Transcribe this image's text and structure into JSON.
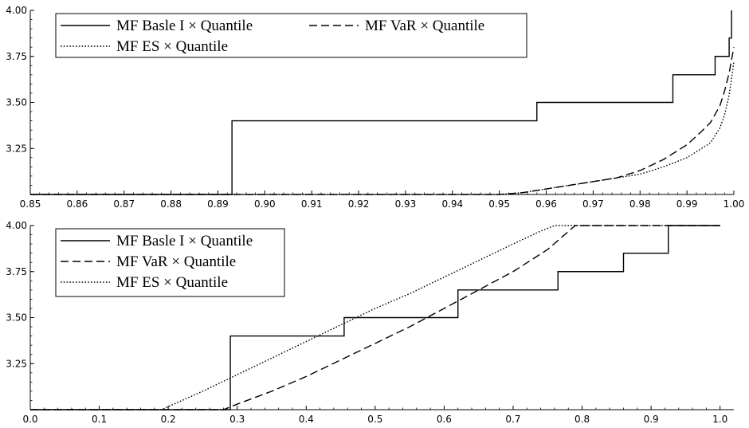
{
  "chart_data": [
    {
      "type": "line",
      "title": "",
      "xlabel": "",
      "ylabel": "",
      "xlim": [
        0.85,
        1.0
      ],
      "ylim": [
        3.0,
        4.0
      ],
      "xticks": [
        "0.85",
        "0.86",
        "0.87",
        "0.88",
        "0.89",
        "0.90",
        "0.91",
        "0.92",
        "0.93",
        "0.94",
        "0.95",
        "0.96",
        "0.97",
        "0.98",
        "0.99",
        "1.00"
      ],
      "yticks": [
        "3.25",
        "3.50",
        "3.75",
        "4.00"
      ],
      "grid": false,
      "legend_position": "top-left",
      "series": [
        {
          "name": "MF Basle I × Quantile",
          "style": "solid",
          "step": true,
          "points": [
            [
              0.85,
              3.0
            ],
            [
              0.893,
              3.0
            ],
            [
              0.893,
              3.4
            ],
            [
              0.958,
              3.4
            ],
            [
              0.958,
              3.5
            ],
            [
              0.987,
              3.5
            ],
            [
              0.987,
              3.65
            ],
            [
              0.996,
              3.65
            ],
            [
              0.996,
              3.75
            ],
            [
              0.999,
              3.75
            ],
            [
              0.999,
              3.85
            ],
            [
              0.9995,
              3.85
            ],
            [
              0.9995,
              4.0
            ]
          ]
        },
        {
          "name": "MF VaR × Quantile",
          "style": "dashed",
          "step": false,
          "points": [
            [
              0.85,
              3.0
            ],
            [
              0.95,
              3.0
            ],
            [
              0.955,
              3.01
            ],
            [
              0.96,
              3.03
            ],
            [
              0.965,
              3.05
            ],
            [
              0.97,
              3.07
            ],
            [
              0.975,
              3.09
            ],
            [
              0.98,
              3.13
            ],
            [
              0.985,
              3.19
            ],
            [
              0.99,
              3.27
            ],
            [
              0.993,
              3.34
            ],
            [
              0.995,
              3.39
            ],
            [
              0.997,
              3.48
            ],
            [
              0.998,
              3.56
            ],
            [
              0.999,
              3.66
            ],
            [
              1.0,
              3.8
            ]
          ]
        },
        {
          "name": "MF ES × Quantile",
          "style": "dotted",
          "step": false,
          "points": [
            [
              0.85,
              3.0
            ],
            [
              0.95,
              3.0
            ],
            [
              0.955,
              3.01
            ],
            [
              0.96,
              3.03
            ],
            [
              0.965,
              3.05
            ],
            [
              0.97,
              3.07
            ],
            [
              0.975,
              3.09
            ],
            [
              0.98,
              3.11
            ],
            [
              0.985,
              3.15
            ],
            [
              0.99,
              3.2
            ],
            [
              0.995,
              3.28
            ],
            [
              0.997,
              3.36
            ],
            [
              0.998,
              3.43
            ],
            [
              0.999,
              3.54
            ],
            [
              1.0,
              3.72
            ]
          ]
        }
      ]
    },
    {
      "type": "line",
      "title": "",
      "xlabel": "",
      "ylabel": "",
      "xlim": [
        0.0,
        1.02
      ],
      "ylim": [
        3.0,
        4.0
      ],
      "xticks": [
        "0.0",
        "0.1",
        "0.2",
        "0.3",
        "0.4",
        "0.5",
        "0.6",
        "0.7",
        "0.8",
        "0.9",
        "1.0"
      ],
      "yticks": [
        "3.25",
        "3.50",
        "3.75",
        "4.00"
      ],
      "grid": false,
      "legend_position": "top-left",
      "series": [
        {
          "name": "MF Basle I × Quantile",
          "style": "solid",
          "step": true,
          "points": [
            [
              0.0,
              3.0
            ],
            [
              0.29,
              3.0
            ],
            [
              0.29,
              3.4
            ],
            [
              0.455,
              3.4
            ],
            [
              0.455,
              3.5
            ],
            [
              0.62,
              3.5
            ],
            [
              0.62,
              3.65
            ],
            [
              0.765,
              3.65
            ],
            [
              0.765,
              3.75
            ],
            [
              0.86,
              3.75
            ],
            [
              0.86,
              3.85
            ],
            [
              0.925,
              3.85
            ],
            [
              0.925,
              4.0
            ],
            [
              1.0,
              4.0
            ]
          ]
        },
        {
          "name": "MF VaR × Quantile",
          "style": "dashed",
          "step": false,
          "points": [
            [
              0.0,
              3.0
            ],
            [
              0.28,
              3.0
            ],
            [
              0.3,
              3.03
            ],
            [
              0.35,
              3.1
            ],
            [
              0.4,
              3.18
            ],
            [
              0.45,
              3.27
            ],
            [
              0.5,
              3.36
            ],
            [
              0.55,
              3.45
            ],
            [
              0.6,
              3.55
            ],
            [
              0.65,
              3.65
            ],
            [
              0.7,
              3.75
            ],
            [
              0.75,
              3.87
            ],
            [
              0.79,
              4.0
            ],
            [
              1.0,
              4.0
            ]
          ]
        },
        {
          "name": "MF ES × Quantile",
          "style": "dotted",
          "step": false,
          "points": [
            [
              0.0,
              3.0
            ],
            [
              0.19,
              3.0
            ],
            [
              0.25,
              3.1
            ],
            [
              0.3,
              3.19
            ],
            [
              0.35,
              3.28
            ],
            [
              0.4,
              3.37
            ],
            [
              0.45,
              3.46
            ],
            [
              0.5,
              3.55
            ],
            [
              0.55,
              3.63
            ],
            [
              0.6,
              3.72
            ],
            [
              0.65,
              3.81
            ],
            [
              0.7,
              3.9
            ],
            [
              0.74,
              3.97
            ],
            [
              0.76,
              4.0
            ],
            [
              1.0,
              4.0
            ]
          ]
        }
      ]
    }
  ]
}
